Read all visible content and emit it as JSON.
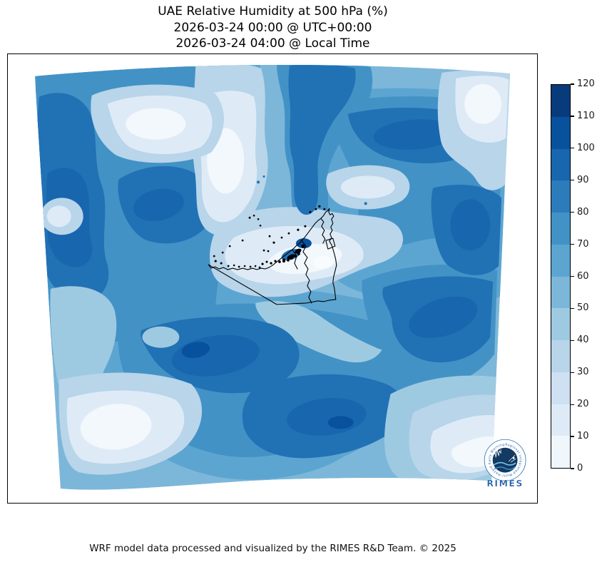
{
  "title": {
    "line1": "UAE Relative Humidity at 500 hPa (%)",
    "line2": "2026-03-24 00:00 @ UTC+00:00",
    "line3": "2026-03-24 04:00 @ Local Time"
  },
  "footer": {
    "credit": "WRF model data processed and visualized by the RIMES R&D Team. © 2025"
  },
  "logo": {
    "name": "RIMES",
    "ring_text": "Regional Integrated Multi-Hazard Early Warning System"
  },
  "colorbar": {
    "unit": "%",
    "ticks": [
      0,
      10,
      20,
      30,
      40,
      50,
      60,
      70,
      80,
      90,
      100,
      110,
      120
    ],
    "segment_colors": [
      "#eff6fc",
      "#deebf7",
      "#cee0f2",
      "#b8d5ea",
      "#9ecae1",
      "#7cb7d9",
      "#5da5d1",
      "#4292c6",
      "#2c7cbb",
      "#1866ad",
      "#08519c",
      "#083b7b"
    ]
  },
  "chart_data": {
    "type": "heatmap",
    "title": "UAE Relative Humidity at 500 hPa (%)",
    "subtitle_utc": "2026-03-24 00:00 @ UTC+00:00",
    "subtitle_local": "2026-03-24 04:00 @ Local Time",
    "variable": "Relative Humidity",
    "level": "500 hPa",
    "units": "%",
    "colormap": "Blues",
    "contour_levels": [
      0,
      10,
      20,
      30,
      40,
      50,
      60,
      70,
      80,
      90,
      100,
      110,
      120
    ],
    "colorbar_range": [
      0,
      120
    ],
    "legend_position": "right-colorbar",
    "grid": false,
    "map_overlay": "UAE coastline, national/emirate boundaries and offshore island dots drawn in black; curvilinear (trapezoidal) WRF model domain",
    "regions_approx": [
      {
        "region": "northwest quadrant dark mass",
        "rh_percent": [
          70,
          100
        ]
      },
      {
        "region": "upper-left light pocket",
        "rh_percent": [
          20,
          40
        ]
      },
      {
        "region": "north-center light column",
        "rh_percent": [
          10,
          30
        ]
      },
      {
        "region": "north-center dark tongue descending to Musandam",
        "rh_percent": [
          70,
          90
        ]
      },
      {
        "region": "central Persian Gulf / UAE coastal band",
        "rh_percent": [
          10,
          40
        ]
      },
      {
        "region": "east-central large mass",
        "rh_percent": [
          70,
          100
        ]
      },
      {
        "region": "northeast corner",
        "rh_percent": [
          10,
          30
        ]
      },
      {
        "region": "right-edge band (east)",
        "rh_percent": [
          70,
          100
        ]
      },
      {
        "region": "south-central interior double lobes",
        "rh_percent": [
          70,
          110
        ]
      },
      {
        "region": "southwest corner",
        "rh_percent": [
          10,
          30
        ]
      },
      {
        "region": "southeast corner gradient",
        "rh_percent": [
          10,
          40
        ]
      }
    ]
  }
}
